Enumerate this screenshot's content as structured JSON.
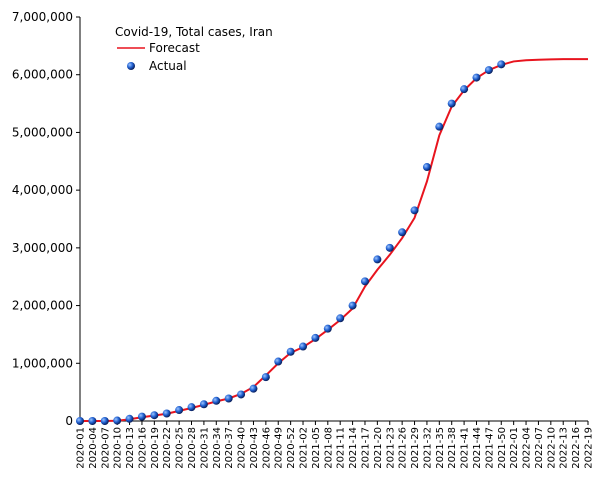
{
  "chart_data": {
    "type": "line",
    "title": "Covid-19, Total cases, Iran",
    "categories": [
      "2020-01",
      "2020-04",
      "2020-07",
      "2020-10",
      "2020-13",
      "2020-16",
      "2020-19",
      "2020-22",
      "2020-25",
      "2020-28",
      "2020-31",
      "2020-34",
      "2020-37",
      "2020-40",
      "2020-43",
      "2020-46",
      "2020-49",
      "2020-52",
      "2021-02",
      "2021-05",
      "2021-08",
      "2021-11",
      "2021-14",
      "2021-17",
      "2021-20",
      "2021-23",
      "2021-26",
      "2021-29",
      "2021-32",
      "2021-35",
      "2021-38",
      "2021-41",
      "2021-44",
      "2021-47",
      "2021-50",
      "2022-01",
      "2022-04",
      "2022-07",
      "2022-10",
      "2022-13",
      "2022-16",
      "2022-19"
    ],
    "series": [
      {
        "name": "Forecast",
        "color": "#e8141e",
        "style": "line",
        "values": [
          0,
          0,
          0,
          5000,
          30000,
          65000,
          95000,
          125000,
          175000,
          225000,
          280000,
          340000,
          390000,
          470000,
          590000,
          790000,
          1000000,
          1180000,
          1280000,
          1420000,
          1580000,
          1750000,
          1950000,
          2330000,
          2620000,
          2880000,
          3170000,
          3520000,
          4150000,
          4950000,
          5450000,
          5730000,
          5940000,
          6080000,
          6170000,
          6230000,
          6250000,
          6260000,
          6265000,
          6270000,
          6270000,
          6270000
        ]
      },
      {
        "name": "Actual",
        "color": "#1f5fd0",
        "style": "marker",
        "values": [
          0,
          0,
          0,
          8000,
          38000,
          76000,
          100000,
          130000,
          190000,
          240000,
          290000,
          350000,
          390000,
          460000,
          560000,
          760000,
          1030000,
          1200000,
          1290000,
          1440000,
          1600000,
          1780000,
          2000000,
          2420000,
          2800000,
          3000000,
          3270000,
          3650000,
          4400000,
          5100000,
          5500000,
          5750000,
          5950000,
          6080000,
          6180000,
          null,
          null,
          null,
          null,
          null,
          null,
          null
        ]
      }
    ],
    "ylim": [
      0,
      7000000
    ],
    "yticks": [
      0,
      {
        "value": 1000000,
        "label": "1,000,000"
      },
      {
        "value": 2000000,
        "label": "2,000,000"
      },
      {
        "value": 3000000,
        "label": "3,000,000"
      },
      {
        "value": 4000000,
        "label": "4,000,000"
      },
      {
        "value": 5000000,
        "label": "5,000,000"
      },
      {
        "value": 6000000,
        "label": "6,000,000"
      },
      {
        "value": 7000000,
        "label": "7,000,000"
      }
    ],
    "grid": false
  }
}
